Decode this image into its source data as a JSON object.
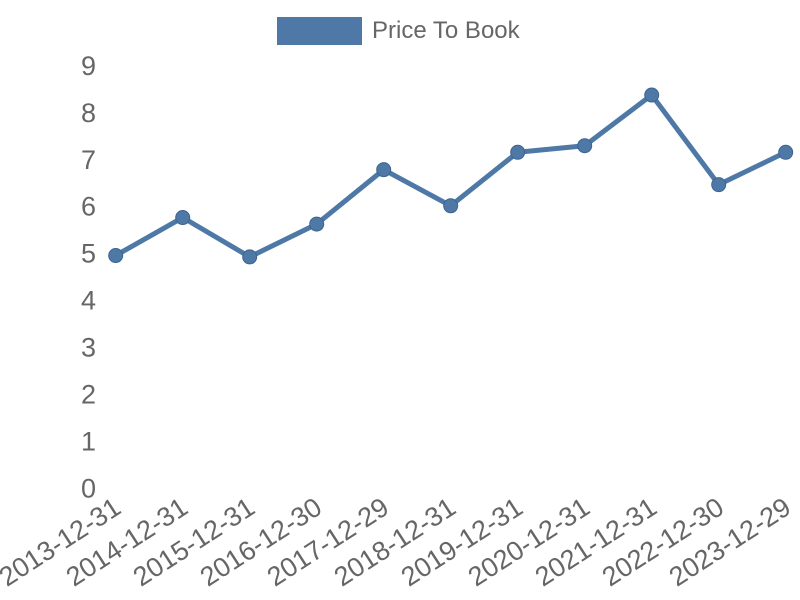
{
  "legend": {
    "label": "Price To Book"
  },
  "chart_data": {
    "type": "line",
    "title": "",
    "categories": [
      "2013-12-31",
      "2014-12-31",
      "2015-12-31",
      "2016-12-30",
      "2017-12-29",
      "2018-12-31",
      "2019-12-31",
      "2020-12-31",
      "2021-12-31",
      "2022-12-30",
      "2023-12-29"
    ],
    "series": [
      {
        "name": "Price To Book",
        "values": [
          4.96,
          5.77,
          4.93,
          5.63,
          6.79,
          6.02,
          7.16,
          7.3,
          8.38,
          6.47,
          7.16
        ],
        "color": "#4e79a7",
        "marker": "circle"
      }
    ],
    "xlabel": "",
    "ylabel": "",
    "ylim": [
      0,
      9
    ],
    "yticks": [
      0,
      1,
      2,
      3,
      4,
      5,
      6,
      7,
      8,
      9
    ],
    "grid": false,
    "axis_lines": false,
    "legend_position": "top-center",
    "x_tick_rotation_deg": -33,
    "tick_text_color": "#666666",
    "marker_edge_color": "#3d648f"
  }
}
